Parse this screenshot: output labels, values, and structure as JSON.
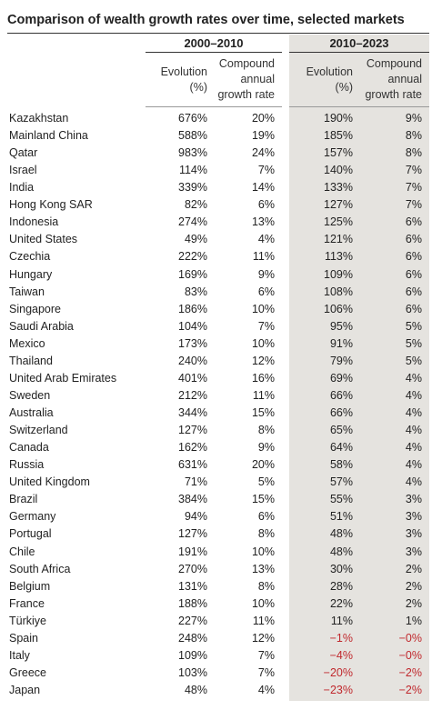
{
  "title": "Comparison of wealth growth rates over time, selected markets",
  "table": {
    "groups": [
      "2000–2010",
      "2010–2023"
    ],
    "columns": [
      "Evolution (%)",
      "Compound annual growth rate",
      "Evolution (%)",
      "Compound annual growth rate"
    ],
    "rows": [
      [
        "Kazakhstan",
        "676%",
        "20%",
        "190%",
        "9%"
      ],
      [
        "Mainland China",
        "588%",
        "19%",
        "185%",
        "8%"
      ],
      [
        "Qatar",
        "983%",
        "24%",
        "157%",
        "8%"
      ],
      [
        "Israel",
        "114%",
        "7%",
        "140%",
        "7%"
      ],
      [
        "India",
        "339%",
        "14%",
        "133%",
        "7%"
      ],
      [
        "Hong Kong SAR",
        "82%",
        "6%",
        "127%",
        "7%"
      ],
      [
        "Indonesia",
        "274%",
        "13%",
        "125%",
        "6%"
      ],
      [
        "United States",
        "49%",
        "4%",
        "121%",
        "6%"
      ],
      [
        "Czechia",
        "222%",
        "11%",
        "113%",
        "6%"
      ],
      [
        "Hungary",
        "169%",
        "9%",
        "109%",
        "6%"
      ],
      [
        "Taiwan",
        "83%",
        "6%",
        "108%",
        "6%"
      ],
      [
        "Singapore",
        "186%",
        "10%",
        "106%",
        "6%"
      ],
      [
        "Saudi Arabia",
        "104%",
        "7%",
        "95%",
        "5%"
      ],
      [
        "Mexico",
        "173%",
        "10%",
        "91%",
        "5%"
      ],
      [
        "Thailand",
        "240%",
        "12%",
        "79%",
        "5%"
      ],
      [
        "United Arab Emirates",
        "401%",
        "16%",
        "69%",
        "4%"
      ],
      [
        "Sweden",
        "212%",
        "11%",
        "66%",
        "4%"
      ],
      [
        "Australia",
        "344%",
        "15%",
        "66%",
        "4%"
      ],
      [
        "Switzerland",
        "127%",
        "8%",
        "65%",
        "4%"
      ],
      [
        "Canada",
        "162%",
        "9%",
        "64%",
        "4%"
      ],
      [
        "Russia",
        "631%",
        "20%",
        "58%",
        "4%"
      ],
      [
        "United Kingdom",
        "71%",
        "5%",
        "57%",
        "4%"
      ],
      [
        "Brazil",
        "384%",
        "15%",
        "55%",
        "3%"
      ],
      [
        "Germany",
        "94%",
        "6%",
        "51%",
        "3%"
      ],
      [
        "Portugal",
        "127%",
        "8%",
        "48%",
        "3%"
      ],
      [
        "Chile",
        "191%",
        "10%",
        "48%",
        "3%"
      ],
      [
        "South Africa",
        "270%",
        "13%",
        "30%",
        "2%"
      ],
      [
        "Belgium",
        "131%",
        "8%",
        "28%",
        "2%"
      ],
      [
        "France",
        "188%",
        "10%",
        "22%",
        "2%"
      ],
      [
        "Türkiye",
        "227%",
        "11%",
        "11%",
        "1%"
      ],
      [
        "Spain",
        "248%",
        "12%",
        "−1%",
        "−0%"
      ],
      [
        "Italy",
        "109%",
        "7%",
        "−4%",
        "−0%"
      ],
      [
        "Greece",
        "103%",
        "7%",
        "−20%",
        "−2%"
      ],
      [
        "Japan",
        "48%",
        "4%",
        "−23%",
        "−2%"
      ]
    ]
  }
}
